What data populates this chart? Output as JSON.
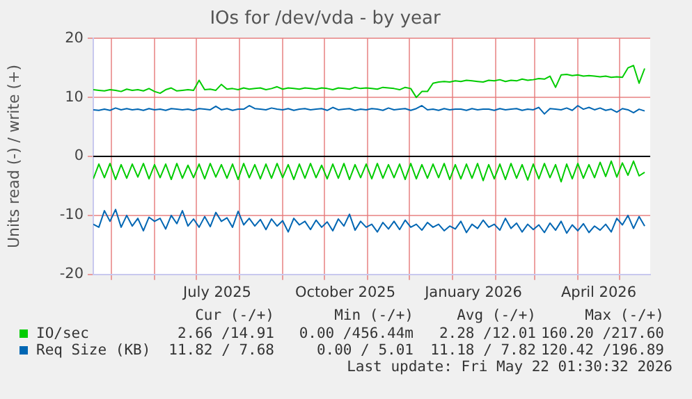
{
  "chart_data": {
    "type": "line",
    "title": "IOs for /dev/vda - by year",
    "ylabel": "Units read (-) / write (+)",
    "x": [
      "2025-04-18",
      "2025-04-22",
      "2025-04-26",
      "2025-04-30",
      "2025-05-04",
      "2025-05-08",
      "2025-05-12",
      "2025-05-16",
      "2025-05-20",
      "2025-05-24",
      "2025-05-28",
      "2025-06-01",
      "2025-06-05",
      "2025-06-09",
      "2025-06-13",
      "2025-06-17",
      "2025-06-21",
      "2025-06-25",
      "2025-06-29",
      "2025-07-03",
      "2025-07-07",
      "2025-07-11",
      "2025-07-15",
      "2025-07-19",
      "2025-07-23",
      "2025-07-27",
      "2025-07-31",
      "2025-08-04",
      "2025-08-08",
      "2025-08-12",
      "2025-08-16",
      "2025-08-20",
      "2025-08-24",
      "2025-08-28",
      "2025-09-01",
      "2025-09-05",
      "2025-09-09",
      "2025-09-13",
      "2025-09-17",
      "2025-09-21",
      "2025-09-25",
      "2025-09-29",
      "2025-10-03",
      "2025-10-07",
      "2025-10-11",
      "2025-10-15",
      "2025-10-19",
      "2025-10-23",
      "2025-10-27",
      "2025-10-31",
      "2025-11-04",
      "2025-11-08",
      "2025-11-12",
      "2025-11-16",
      "2025-11-20",
      "2025-11-24",
      "2025-11-28",
      "2025-12-02",
      "2025-12-06",
      "2025-12-10",
      "2025-12-14",
      "2025-12-18",
      "2025-12-22",
      "2025-12-26",
      "2025-12-30",
      "2026-01-03",
      "2026-01-07",
      "2026-01-11",
      "2026-01-15",
      "2026-01-19",
      "2026-01-23",
      "2026-01-27",
      "2026-01-31",
      "2026-02-04",
      "2026-02-08",
      "2026-02-12",
      "2026-02-16",
      "2026-02-20",
      "2026-02-24",
      "2026-02-28",
      "2026-03-04",
      "2026-03-08",
      "2026-03-12",
      "2026-03-16",
      "2026-03-20",
      "2026-03-24",
      "2026-03-28",
      "2026-04-01",
      "2026-04-05",
      "2026-04-09",
      "2026-04-13",
      "2026-04-17",
      "2026-04-21",
      "2026-04-25",
      "2026-04-29",
      "2026-05-03",
      "2026-05-07",
      "2026-05-11",
      "2026-05-15",
      "2026-05-19"
    ],
    "series": [
      {
        "name": "IO/sec",
        "color": "#00cc00",
        "values": [
          11.3,
          11.2,
          11.1,
          11.3,
          11.2,
          11.0,
          11.4,
          11.2,
          11.3,
          11.1,
          11.5,
          11.0,
          10.7,
          11.3,
          11.6,
          11.1,
          11.2,
          11.3,
          11.2,
          12.9,
          11.3,
          11.4,
          11.2,
          12.2,
          11.4,
          11.5,
          11.3,
          11.6,
          11.4,
          11.5,
          11.6,
          11.3,
          11.5,
          11.8,
          11.4,
          11.6,
          11.5,
          11.4,
          11.6,
          11.5,
          11.4,
          11.6,
          11.5,
          11.3,
          11.6,
          11.5,
          11.4,
          11.7,
          11.5,
          11.6,
          11.5,
          11.4,
          11.7,
          11.6,
          11.5,
          11.3,
          11.7,
          11.5,
          10.0,
          11.0,
          11.0,
          12.4,
          12.6,
          12.7,
          12.6,
          12.8,
          12.7,
          12.9,
          12.8,
          12.7,
          12.6,
          12.9,
          12.8,
          13.0,
          12.7,
          12.9,
          12.8,
          13.1,
          12.9,
          13.0,
          13.2,
          13.1,
          13.6,
          11.7,
          13.8,
          13.9,
          13.7,
          13.8,
          13.6,
          13.7,
          13.6,
          13.5,
          13.6,
          13.4,
          13.5,
          13.4,
          15.0,
          15.4,
          12.4,
          14.9
        ]
      },
      {
        "color": "#00cc00",
        "values": [
          -3.8,
          -1.3,
          -3.6,
          -1.2,
          -3.9,
          -1.4,
          -3.7,
          -1.3,
          -3.5,
          -1.2,
          -3.8,
          -1.4,
          -3.6,
          -1.3,
          -3.9,
          -1.2,
          -3.7,
          -1.5,
          -3.6,
          -1.3,
          -3.8,
          -1.2,
          -3.5,
          -1.4,
          -3.7,
          -1.3,
          -3.9,
          -1.2,
          -3.6,
          -1.4,
          -3.8,
          -1.3,
          -3.7,
          -1.2,
          -3.6,
          -1.4,
          -3.9,
          -1.3,
          -3.7,
          -1.2,
          -3.6,
          -1.5,
          -3.8,
          -1.3,
          -3.7,
          -1.2,
          -3.9,
          -1.4,
          -3.6,
          -1.3,
          -3.8,
          -1.2,
          -3.7,
          -1.4,
          -3.6,
          -1.3,
          -3.9,
          -1.2,
          -3.8,
          -1.4,
          -3.7,
          -1.3,
          -3.6,
          -1.2,
          -3.9,
          -1.4,
          -3.8,
          -1.3,
          -3.7,
          -1.2,
          -4.1,
          -1.4,
          -3.8,
          -1.3,
          -3.9,
          -1.2,
          -3.7,
          -1.4,
          -4.0,
          -1.3,
          -3.8,
          -1.2,
          -3.6,
          -1.4,
          -4.3,
          -1.3,
          -3.8,
          -1.2,
          -3.7,
          -1.4,
          -3.6,
          -1.0,
          -3.4,
          -0.8,
          -3.5,
          -1.1,
          -3.2,
          -0.8,
          -3.3,
          -2.7
        ]
      },
      {
        "name": "Req Size (KB)",
        "color": "#0066b3",
        "values": [
          7.9,
          7.8,
          8.0,
          7.8,
          8.2,
          7.9,
          8.1,
          7.9,
          8.0,
          7.8,
          8.1,
          7.9,
          8.0,
          7.8,
          8.1,
          8.0,
          7.9,
          8.0,
          7.8,
          8.1,
          8.0,
          7.9,
          8.5,
          7.9,
          8.1,
          7.8,
          8.0,
          8.0,
          8.6,
          8.1,
          8.0,
          7.9,
          8.2,
          8.0,
          7.9,
          8.1,
          7.8,
          8.0,
          8.1,
          7.9,
          8.0,
          8.1,
          7.8,
          8.3,
          7.9,
          8.0,
          8.1,
          7.8,
          8.0,
          7.9,
          8.1,
          8.0,
          7.8,
          8.2,
          7.9,
          8.0,
          8.1,
          7.8,
          8.1,
          8.6,
          7.9,
          8.0,
          7.8,
          8.1,
          7.9,
          8.0,
          8.0,
          7.8,
          8.1,
          7.9,
          8.0,
          8.0,
          7.8,
          8.1,
          7.9,
          8.0,
          8.1,
          7.8,
          8.0,
          7.9,
          8.3,
          7.2,
          8.1,
          8.0,
          7.9,
          8.2,
          7.8,
          8.6,
          8.0,
          8.3,
          7.9,
          8.2,
          7.8,
          8.0,
          7.5,
          8.1,
          7.9,
          7.4,
          8.0,
          7.7
        ]
      },
      {
        "color": "#0066b3",
        "values": [
          -11.5,
          -12.0,
          -9.2,
          -11.0,
          -9.0,
          -12.0,
          -10.0,
          -11.8,
          -10.5,
          -12.6,
          -10.3,
          -11.0,
          -10.5,
          -12.3,
          -10.0,
          -11.4,
          -9.2,
          -11.8,
          -10.6,
          -12.0,
          -10.2,
          -11.9,
          -9.5,
          -11.0,
          -10.4,
          -12.0,
          -9.3,
          -11.6,
          -10.5,
          -11.8,
          -10.7,
          -12.4,
          -10.6,
          -11.8,
          -10.9,
          -12.8,
          -10.5,
          -11.6,
          -11.0,
          -12.4,
          -10.8,
          -12.0,
          -11.1,
          -12.6,
          -10.6,
          -11.8,
          -9.8,
          -12.5,
          -11.0,
          -12.0,
          -11.5,
          -12.8,
          -11.2,
          -12.3,
          -11.0,
          -12.4,
          -10.8,
          -12.0,
          -11.5,
          -12.5,
          -11.2,
          -12.0,
          -11.5,
          -12.6,
          -11.8,
          -12.3,
          -11.0,
          -12.9,
          -11.5,
          -12.2,
          -10.8,
          -12.0,
          -11.5,
          -12.5,
          -10.5,
          -12.2,
          -11.3,
          -12.8,
          -11.5,
          -12.4,
          -11.6,
          -12.9,
          -11.3,
          -12.5,
          -11.0,
          -13.0,
          -11.6,
          -12.6,
          -11.4,
          -12.9,
          -11.8,
          -12.5,
          -11.5,
          -12.8,
          -10.5,
          -11.6,
          -10.0,
          -12.2,
          -10.2,
          -11.8
        ]
      }
    ],
    "xlim": [
      "2025-04-18",
      "2026-05-23"
    ],
    "xticks": [
      {
        "value": "2025-05-01",
        "label": null
      },
      {
        "value": "2025-06-01",
        "label": null
      },
      {
        "value": "2025-07-01",
        "label": null
      },
      {
        "value": "2025-07-16",
        "label": "July 2025"
      },
      {
        "value": "2025-08-01",
        "label": null
      },
      {
        "value": "2025-09-01",
        "label": null
      },
      {
        "value": "2025-10-01",
        "label": null
      },
      {
        "value": "2025-10-16",
        "label": "October 2025"
      },
      {
        "value": "2025-11-01",
        "label": null
      },
      {
        "value": "2025-12-01",
        "label": null
      },
      {
        "value": "2026-01-01",
        "label": null
      },
      {
        "value": "2026-01-16",
        "label": "January 2026"
      },
      {
        "value": "2026-02-01",
        "label": null
      },
      {
        "value": "2026-03-01",
        "label": null
      },
      {
        "value": "2026-04-01",
        "label": null
      },
      {
        "value": "2026-04-16",
        "label": "April 2026"
      },
      {
        "value": "2026-05-01",
        "label": null
      }
    ],
    "ylim": [
      -20,
      20
    ],
    "yticks": [
      -20,
      -10,
      0,
      10,
      20
    ],
    "ref_lines": [
      {
        "axis": "y",
        "value": 0,
        "color": "#000000"
      }
    ],
    "grid": true,
    "legend": "bottom",
    "annotations": [
      "Cur (-/+)",
      "Min (-/+)",
      "Avg (-/+)",
      "Max (-/+)",
      "2.66 /14.91",
      "0.00 /456.44m",
      "2.28 /12.01",
      "160.20 /217.60",
      "11.82 / 7.68",
      "0.00 / 5.01",
      "11.18 / 7.82",
      "120.42 /196.89",
      "Last update: Fri May 22 01:30:32 2026"
    ]
  }
}
